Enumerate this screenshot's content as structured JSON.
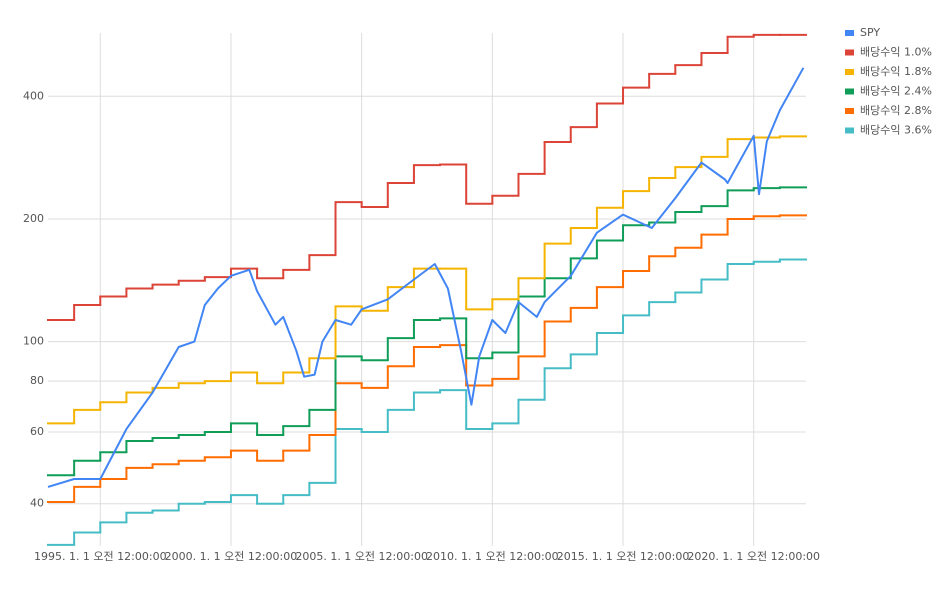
{
  "chart_data": {
    "type": "line",
    "log_y": true,
    "grid": true,
    "legend": "right",
    "xlim": [
      1993,
      2022
    ],
    "ylim": [
      31.5,
      572
    ],
    "xticks": [
      {
        "value": 1995,
        "label": "1995. 1. 1 오전 12:00:00"
      },
      {
        "value": 2000,
        "label": "2000. 1. 1 오전 12:00:00"
      },
      {
        "value": 2005,
        "label": "2005. 1. 1 오전 12:00:00"
      },
      {
        "value": 2010,
        "label": "2010. 1. 1 오전 12:00:00"
      },
      {
        "value": 2015,
        "label": "2015. 1. 1 오전 12:00:00"
      },
      {
        "value": 2020,
        "label": "2020. 1. 1 오전 12:00:00"
      }
    ],
    "yticks": [
      40,
      60,
      80,
      100,
      200,
      400
    ],
    "series": [
      {
        "name": "SPY",
        "color": "#4285f4",
        "step": false,
        "x": [
          1993.0,
          1994.0,
          1995.0,
          1996.0,
          1997.0,
          1998.0,
          1998.6,
          1999.0,
          1999.5,
          2000.0,
          2000.7,
          2001.0,
          2001.7,
          2002.0,
          2002.5,
          2002.8,
          2003.2,
          2003.5,
          2004.0,
          2004.6,
          2005.0,
          2006.0,
          2007.0,
          2007.8,
          2008.3,
          2008.8,
          2009.2,
          2009.5,
          2010.0,
          2010.5,
          2011.0,
          2011.7,
          2012.0,
          2013.0,
          2014.0,
          2015.0,
          2016.1,
          2017.0,
          2018.0,
          2018.9,
          2019.0,
          2020.0,
          2020.2,
          2020.5,
          2021.0,
          2021.9
        ],
        "values": [
          44,
          46,
          46,
          61,
          75,
          97,
          100,
          123,
          135,
          145,
          150,
          133,
          110,
          115,
          95,
          82,
          83,
          100,
          113,
          110,
          120,
          127,
          142,
          155,
          135,
          95,
          70,
          92,
          113,
          105,
          125,
          115,
          125,
          145,
          185,
          205,
          190,
          225,
          275,
          250,
          245,
          320,
          230,
          310,
          370,
          470
        ]
      },
      {
        "name": "배당수익 1.0%",
        "color": "#db4437",
        "step": true,
        "x": [
          1993,
          1994,
          1995,
          1996,
          1997,
          1998,
          1999,
          2000,
          2001,
          2002,
          2003,
          2004,
          2005,
          2006,
          2007,
          2008,
          2009,
          2010,
          2011,
          2012,
          2013,
          2014,
          2015,
          2016,
          2017,
          2018,
          2019,
          2020,
          2021
        ],
        "values": [
          113,
          123,
          129,
          135,
          138,
          141,
          144,
          151,
          143,
          150,
          163,
          220,
          214,
          245,
          271,
          272,
          218,
          228,
          258,
          309,
          336,
          384,
          420,
          454,
          477,
          511,
          560,
          566,
          566
        ]
      },
      {
        "name": "배당수익 1.8%",
        "color": "#f4b400",
        "step": true,
        "x": [
          1993,
          1994,
          1995,
          1996,
          1997,
          1998,
          1999,
          2000,
          2001,
          2002,
          2003,
          2004,
          2005,
          2006,
          2007,
          2008,
          2009,
          2010,
          2011,
          2012,
          2013,
          2014,
          2015,
          2016,
          2017,
          2018,
          2019,
          2020,
          2021
        ],
        "values": [
          63,
          68,
          71,
          75,
          77,
          79,
          80,
          84,
          79,
          84,
          91,
          122,
          119,
          136,
          151,
          151,
          120,
          127,
          143,
          174,
          190,
          213,
          234,
          252,
          268,
          284,
          314,
          317,
          319
        ]
      },
      {
        "name": "배당수익 2.4%",
        "color": "#0f9d58",
        "step": true,
        "x": [
          1993,
          1994,
          1995,
          1996,
          1997,
          1998,
          1999,
          2000,
          2001,
          2002,
          2003,
          2004,
          2005,
          2006,
          2007,
          2008,
          2009,
          2010,
          2011,
          2012,
          2013,
          2014,
          2015,
          2016,
          2017,
          2018,
          2019,
          2020,
          2021
        ],
        "values": [
          47,
          51,
          53.5,
          57,
          58,
          59,
          60,
          63,
          59,
          62,
          68,
          92,
          90,
          102,
          113,
          114,
          91,
          94,
          129,
          143,
          160,
          177,
          193,
          196,
          208,
          215,
          235,
          238,
          239
        ]
      },
      {
        "name": "배당수익 2.8%",
        "color": "#ff6d01",
        "step": true,
        "x": [
          1993,
          1994,
          1995,
          1996,
          1997,
          1998,
          1999,
          2000,
          2001,
          2002,
          2003,
          2004,
          2005,
          2006,
          2007,
          2008,
          2009,
          2010,
          2011,
          2012,
          2013,
          2014,
          2015,
          2016,
          2017,
          2018,
          2019,
          2020,
          2021
        ],
        "values": [
          40.4,
          44,
          46,
          49,
          50,
          51,
          52,
          54,
          51,
          54,
          59,
          79,
          77,
          87,
          97,
          98,
          78,
          81,
          92,
          112,
          121,
          136,
          149,
          162,
          170,
          183,
          200,
          203,
          204
        ]
      },
      {
        "name": "배당수익 3.6%",
        "color": "#46bdc6",
        "step": true,
        "x": [
          1993,
          1994,
          1995,
          1996,
          1997,
          1998,
          1999,
          2000,
          2001,
          2002,
          2003,
          2004,
          2005,
          2006,
          2007,
          2008,
          2009,
          2010,
          2011,
          2012,
          2013,
          2014,
          2015,
          2016,
          2017,
          2018,
          2019,
          2020,
          2021
        ],
        "values": [
          31.7,
          34,
          36,
          38,
          38.5,
          40,
          40.4,
          42,
          40,
          42,
          45,
          61,
          60,
          68,
          75,
          76,
          61,
          63,
          72,
          86,
          93,
          105,
          116,
          125,
          132,
          142,
          155,
          157,
          159
        ]
      }
    ]
  }
}
